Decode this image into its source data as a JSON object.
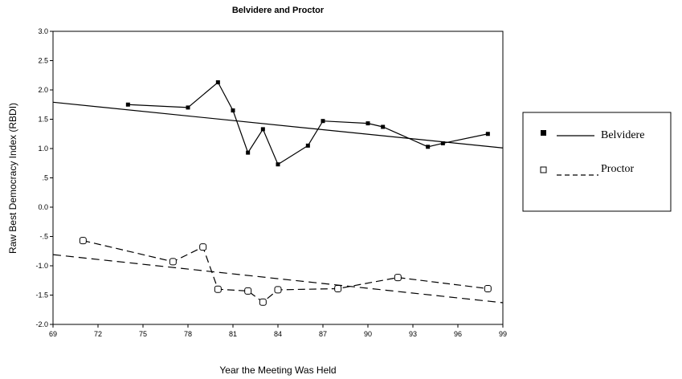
{
  "chart_data": {
    "type": "line",
    "title": "Belvidere and Proctor",
    "xlabel": "Year the Meeting Was Held",
    "ylabel": "Raw Best Democracy Index (RBDI)",
    "xlim": [
      69,
      99
    ],
    "ylim": [
      -2.0,
      3.0
    ],
    "x_ticks": [
      {
        "value": 69,
        "label": "69"
      },
      {
        "value": 72,
        "label": "72"
      },
      {
        "value": 75,
        "label": "75"
      },
      {
        "value": 78,
        "label": "78"
      },
      {
        "value": 81,
        "label": "81"
      },
      {
        "value": 84,
        "label": "84"
      },
      {
        "value": 87,
        "label": "87"
      },
      {
        "value": 90,
        "label": "90"
      },
      {
        "value": 93,
        "label": "93"
      },
      {
        "value": 96,
        "label": "96"
      },
      {
        "value": 99,
        "label": "99"
      }
    ],
    "y_ticks": [
      {
        "value": 3.0,
        "label": "3.0"
      },
      {
        "value": 2.5,
        "label": "2.5"
      },
      {
        "value": 2.0,
        "label": "2.0"
      },
      {
        "value": 1.5,
        "label": "1.5"
      },
      {
        "value": 1.0,
        "label": "1.0"
      },
      {
        "value": 0.5,
        "label": ".5"
      },
      {
        "value": 0.0,
        "label": "0.0"
      },
      {
        "value": -0.5,
        "label": "-.5"
      },
      {
        "value": -1.0,
        "label": "-1.0"
      },
      {
        "value": -1.5,
        "label": "-1.5"
      },
      {
        "value": -2.0,
        "label": "-2.0"
      }
    ],
    "legend_position": "right",
    "series": [
      {
        "name": "Belvidere",
        "marker": "filled-square",
        "line_style": "solid",
        "color": "#000000",
        "x": [
          74,
          78,
          80,
          81,
          82,
          83,
          84,
          86,
          87,
          90,
          91,
          94,
          95,
          98
        ],
        "y": [
          1.75,
          1.7,
          2.13,
          1.65,
          0.93,
          1.33,
          0.73,
          1.05,
          1.47,
          1.43,
          1.37,
          1.03,
          1.09,
          1.25
        ],
        "fit_line": {
          "x": [
            69,
            99
          ],
          "y": [
            1.79,
            1.01
          ]
        }
      },
      {
        "name": "Proctor",
        "marker": "open-square",
        "line_style": "dashed",
        "color": "#000000",
        "x": [
          71,
          77,
          79,
          80,
          82,
          83,
          84,
          88,
          92,
          98
        ],
        "y": [
          -0.57,
          -0.93,
          -0.68,
          -1.4,
          -1.43,
          -1.62,
          -1.41,
          -1.39,
          -1.2,
          -1.39
        ],
        "fit_line": {
          "x": [
            69,
            99
          ],
          "y": [
            -0.81,
            -1.63
          ]
        }
      }
    ]
  }
}
